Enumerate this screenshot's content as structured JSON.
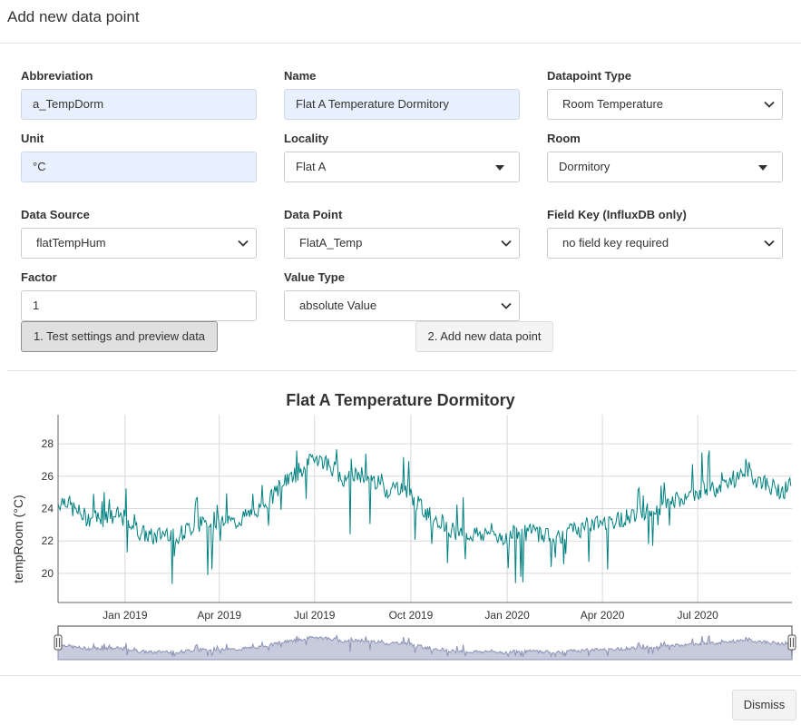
{
  "modal": {
    "title": "Add new data point"
  },
  "form": {
    "abbreviation": {
      "label": "Abbreviation",
      "value": "a_TempDorm"
    },
    "name": {
      "label": "Name",
      "value": "Flat A Temperature Dormitory"
    },
    "datapoint_type": {
      "label": "Datapoint Type",
      "value": "Room Temperature"
    },
    "unit": {
      "label": "Unit",
      "value": "°C"
    },
    "locality": {
      "label": "Locality",
      "value": "Flat A"
    },
    "room": {
      "label": "Room",
      "value": "Dormitory"
    },
    "data_source": {
      "label": "Data Source",
      "value": "flatTempHum"
    },
    "data_point": {
      "label": "Data Point",
      "value": "FlatA_Temp"
    },
    "field_key": {
      "label": "Field Key (InfluxDB only)",
      "value": "no field key required"
    },
    "factor": {
      "label": "Factor",
      "value": "1"
    },
    "value_type": {
      "label": "Value Type",
      "value": "absolute Value"
    }
  },
  "buttons": {
    "test": "1. Test settings and preview data",
    "add": "2. Add new data point",
    "dismiss": "Dismiss"
  },
  "chart_data": {
    "type": "line",
    "title": "Flat A Temperature Dormitory",
    "ylabel": "tempRoom (°C)",
    "xlabel": "",
    "x_tick_labels": [
      "Jan 2019",
      "Apr 2019",
      "Jul 2019",
      "Oct 2019",
      "Jan 2020",
      "Apr 2020",
      "Jul 2020"
    ],
    "y_ticks": [
      20,
      22,
      24,
      26,
      28
    ],
    "ylim": [
      18.2,
      29.8
    ],
    "xlim": [
      "2018-10-29",
      "2020-09-29"
    ],
    "grid": true,
    "series": [
      {
        "color": "#008080",
        "x": [
          "2018-10-29",
          "2018-11-05",
          "2018-11-12",
          "2018-11-19",
          "2018-11-26",
          "2018-12-03",
          "2018-12-10",
          "2018-12-17",
          "2018-12-24",
          "2018-12-31",
          "2019-01-07",
          "2019-01-14",
          "2019-01-21",
          "2019-01-28",
          "2019-02-04",
          "2019-02-11",
          "2019-02-18",
          "2019-02-25",
          "2019-03-04",
          "2019-03-11",
          "2019-03-18",
          "2019-03-25",
          "2019-04-01",
          "2019-04-08",
          "2019-04-15",
          "2019-04-22",
          "2019-04-29",
          "2019-05-06",
          "2019-05-13",
          "2019-05-20",
          "2019-05-27",
          "2019-06-03",
          "2019-06-10",
          "2019-06-17",
          "2019-06-24",
          "2019-07-01",
          "2019-07-08",
          "2019-07-15",
          "2019-07-22",
          "2019-07-29",
          "2019-08-05",
          "2019-08-12",
          "2019-08-19",
          "2019-08-26",
          "2019-09-02",
          "2019-09-09",
          "2019-09-16",
          "2019-09-23",
          "2019-09-30",
          "2019-10-07",
          "2019-10-14",
          "2019-10-21",
          "2019-10-28",
          "2019-11-04",
          "2019-11-11",
          "2019-11-18",
          "2019-11-25",
          "2019-12-02",
          "2019-12-09",
          "2019-12-16",
          "2019-12-23",
          "2019-12-30",
          "2020-01-06",
          "2020-01-13",
          "2020-01-20",
          "2020-01-27",
          "2020-02-03",
          "2020-02-10",
          "2020-02-17",
          "2020-02-24",
          "2020-03-02",
          "2020-03-09",
          "2020-03-16",
          "2020-03-23",
          "2020-03-30",
          "2020-04-06",
          "2020-04-13",
          "2020-04-20",
          "2020-04-27",
          "2020-05-04",
          "2020-05-11",
          "2020-05-18",
          "2020-05-25",
          "2020-06-01",
          "2020-06-08",
          "2020-06-15",
          "2020-06-22",
          "2020-06-29",
          "2020-07-06",
          "2020-07-13",
          "2020-07-20",
          "2020-07-27",
          "2020-08-03",
          "2020-08-10",
          "2020-08-17",
          "2020-08-24",
          "2020-08-31",
          "2020-09-07",
          "2020-09-14",
          "2020-09-21",
          "2020-09-28"
        ],
        "y": [
          24.3,
          24.6,
          24.0,
          23.7,
          23.4,
          23.5,
          23.3,
          23.4,
          23.6,
          23.4,
          22.9,
          22.6,
          22.4,
          22.2,
          22.4,
          22.6,
          22.3,
          22.5,
          22.8,
          23.0,
          23.1,
          23.2,
          23.2,
          23.3,
          23.1,
          23.4,
          23.6,
          23.9,
          24.1,
          24.6,
          25.2,
          25.8,
          25.9,
          26.4,
          26.6,
          27.3,
          27.0,
          26.7,
          26.3,
          25.9,
          25.8,
          26.2,
          26.0,
          25.7,
          25.5,
          25.1,
          25.3,
          25.4,
          24.9,
          24.3,
          23.9,
          23.5,
          23.3,
          23.0,
          22.6,
          22.4,
          22.3,
          22.5,
          22.4,
          22.6,
          22.3,
          22.2,
          22.6,
          22.4,
          22.5,
          22.6,
          22.4,
          22.5,
          22.3,
          22.4,
          22.6,
          22.7,
          22.9,
          23.0,
          23.1,
          23.3,
          23.2,
          23.4,
          23.5,
          23.8,
          23.7,
          24.0,
          24.1,
          24.2,
          24.6,
          24.3,
          24.9,
          25.0,
          25.2,
          25.4,
          25.1,
          25.6,
          25.8,
          26.0,
          26.6,
          25.8,
          25.7,
          25.4,
          25.2,
          25.1,
          25.4
        ]
      }
    ]
  }
}
